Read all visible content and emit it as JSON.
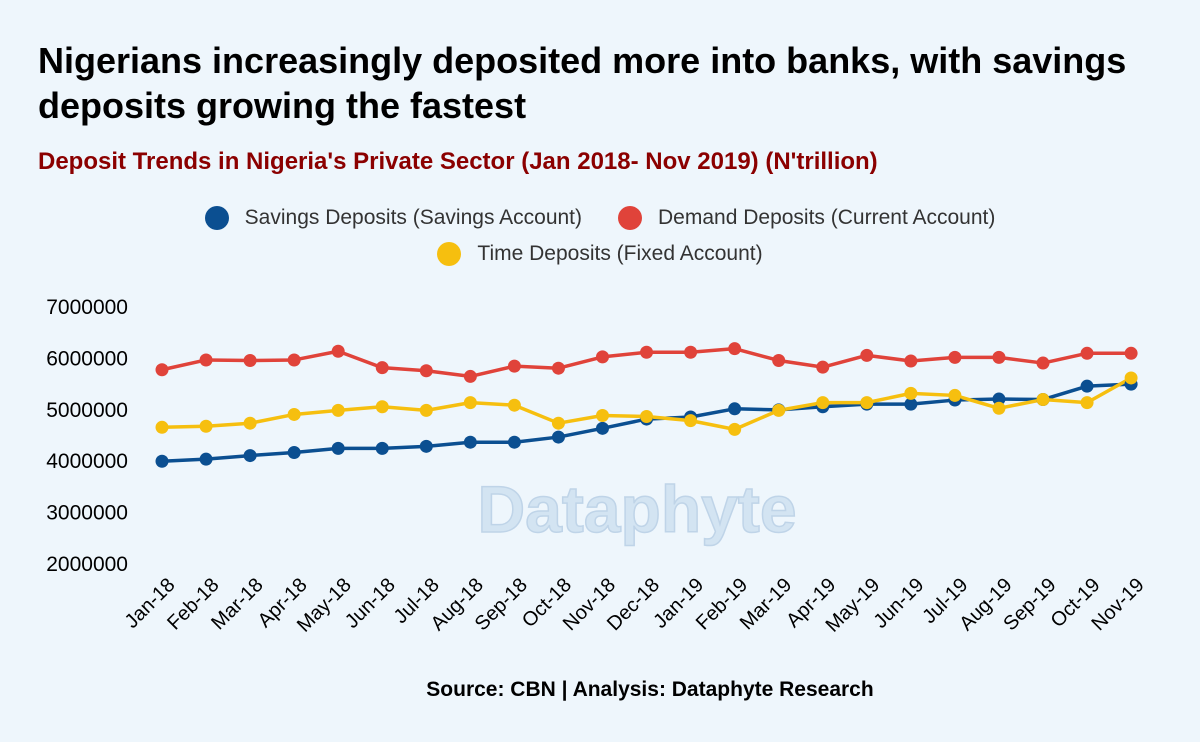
{
  "title": "Nigerians increasingly deposited more into banks, with savings deposits growing the fastest",
  "subtitle": "Deposit Trends in Nigeria's Private Sector (Jan 2018- Nov 2019) (N'trillion)",
  "source": "Source: CBN | Analysis: Dataphyte Research",
  "watermark": "Dataphyte",
  "legend": [
    {
      "label": "Savings Deposits (Savings Account)",
      "color": "#0b4f91"
    },
    {
      "label": "Demand Deposits (Current Account)",
      "color": "#e0433a"
    },
    {
      "label": "Time Deposits (Fixed Account)",
      "color": "#f6bf0f"
    }
  ],
  "chart_data": {
    "type": "line",
    "title": "Deposit Trends in Nigeria's Private Sector (Jan 2018- Nov 2019) (N'trillion)",
    "xlabel": "",
    "ylabel": "",
    "ylim": [
      2000000,
      7000000
    ],
    "yticks": [
      "2000000",
      "3000000",
      "4000000",
      "5000000",
      "6000000",
      "7000000"
    ],
    "grid": false,
    "legend_position": "top-center",
    "categories": [
      "Jan-18",
      "Feb-18",
      "Mar-18",
      "Apr-18",
      "May-18",
      "Jun-18",
      "Jul-18",
      "Aug-18",
      "Sep-18",
      "Oct-18",
      "Nov-18",
      "Dec-18",
      "Jan-19",
      "Feb-19",
      "Mar-19",
      "Apr-19",
      "May-19",
      "Jun-19",
      "Jul-19",
      "Aug-19",
      "Sep-19",
      "Oct-19",
      "Nov-19"
    ],
    "series": [
      {
        "name": "Demand Deposits (Current Account)",
        "color": "#e0433a",
        "values": [
          5760000,
          5950000,
          5940000,
          5950000,
          6120000,
          5800000,
          5740000,
          5630000,
          5830000,
          5790000,
          6010000,
          6100000,
          6100000,
          6170000,
          5940000,
          5810000,
          6040000,
          5930000,
          6000000,
          6000000,
          5890000,
          6080000,
          6080000
        ]
      },
      {
        "name": "Savings Deposits (Savings Account)",
        "color": "#0b4f91",
        "values": [
          3980000,
          4020000,
          4090000,
          4150000,
          4230000,
          4230000,
          4270000,
          4350000,
          4350000,
          4450000,
          4620000,
          4800000,
          4840000,
          5000000,
          4980000,
          5040000,
          5090000,
          5090000,
          5170000,
          5190000,
          5180000,
          5440000,
          5480000
        ]
      },
      {
        "name": "Time Deposits (Fixed Account)",
        "color": "#f6bf0f",
        "values": [
          4640000,
          4660000,
          4720000,
          4890000,
          4970000,
          5040000,
          4970000,
          5120000,
          5070000,
          4720000,
          4870000,
          4850000,
          4770000,
          4600000,
          4970000,
          5120000,
          5120000,
          5300000,
          5260000,
          5010000,
          5180000,
          5120000,
          5600000
        ]
      }
    ]
  }
}
